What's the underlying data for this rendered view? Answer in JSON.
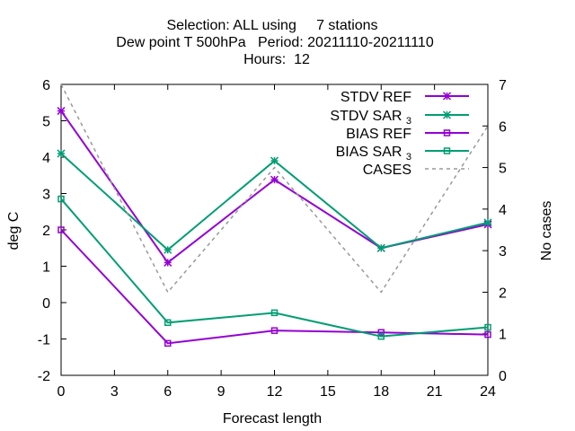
{
  "title_lines": [
    "Selection: ALL using     7 stations",
    "Dew point T 500hPa   Period: 20211110-20211110",
    "Hours:  12"
  ],
  "chart_data": {
    "type": "line",
    "xlabel": "Forecast length",
    "ylabel": "deg C",
    "y2label": "No cases",
    "xlim": [
      0,
      24
    ],
    "ylim": [
      -2,
      6
    ],
    "y2lim": [
      0,
      7
    ],
    "xticks": [
      0,
      3,
      6,
      9,
      12,
      15,
      18,
      21,
      24
    ],
    "yticks": [
      -2,
      -1,
      0,
      1,
      2,
      3,
      4,
      5,
      6
    ],
    "y2ticks": [
      0,
      1,
      2,
      3,
      4,
      5,
      6,
      7
    ],
    "grid": false,
    "legend_position": "top-right",
    "x": [
      0,
      6,
      12,
      18,
      24
    ],
    "series": [
      {
        "name": "STDV REF",
        "sub": "",
        "axis": "y",
        "color": "#9400d3",
        "marker": "star",
        "dash": false,
        "values": [
          5.27,
          1.1,
          3.38,
          1.5,
          2.15
        ]
      },
      {
        "name": "STDV SAR",
        "sub": "3",
        "axis": "y",
        "color": "#009e73",
        "marker": "star",
        "dash": false,
        "values": [
          4.1,
          1.45,
          3.9,
          1.5,
          2.2
        ]
      },
      {
        "name": "BIAS REF",
        "sub": "",
        "axis": "y",
        "color": "#9400d3",
        "marker": "square",
        "dash": false,
        "values": [
          2.0,
          -1.12,
          -0.77,
          -0.82,
          -0.88
        ]
      },
      {
        "name": "BIAS SAR",
        "sub": "3",
        "axis": "y",
        "color": "#009e73",
        "marker": "square",
        "dash": false,
        "values": [
          2.85,
          -0.55,
          -0.28,
          -0.93,
          -0.68
        ]
      },
      {
        "name": "CASES",
        "sub": "",
        "axis": "y2",
        "color": "#999999",
        "marker": "none",
        "dash": true,
        "values": [
          7,
          2,
          5,
          2,
          6
        ]
      }
    ]
  }
}
